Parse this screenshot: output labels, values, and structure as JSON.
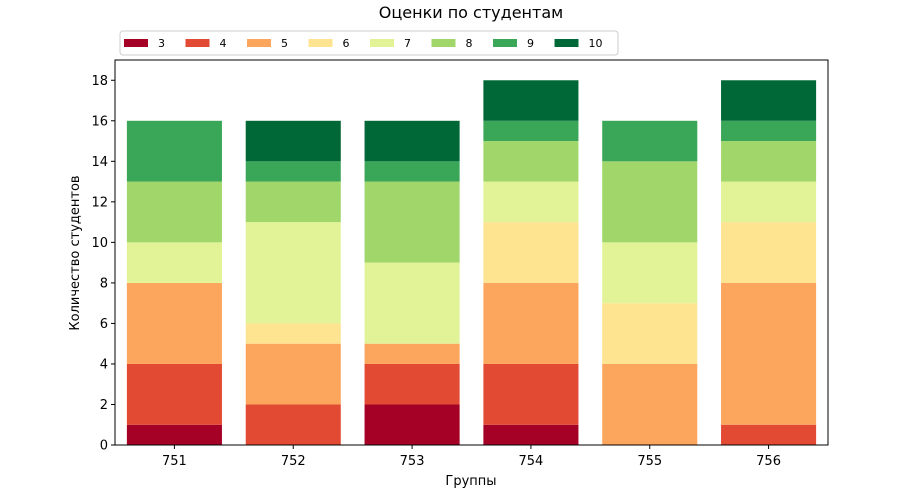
{
  "chart_data": {
    "type": "bar",
    "stacked": true,
    "title": "Оценки по студентам",
    "xlabel": "Группы",
    "ylabel": "Количество студентов",
    "categories": [
      "751",
      "752",
      "753",
      "754",
      "755",
      "756"
    ],
    "ylim": [
      0,
      19
    ],
    "yticks": [
      0,
      2,
      4,
      6,
      8,
      10,
      12,
      14,
      16,
      18
    ],
    "legend_position": "top-left",
    "legend_columns": 8,
    "grid": false,
    "series": [
      {
        "name": "3",
        "color": "#a50026",
        "values": [
          1,
          0,
          2,
          1,
          0,
          0
        ]
      },
      {
        "name": "4",
        "color": "#e34a33",
        "values": [
          3,
          2,
          2,
          3,
          0,
          1
        ]
      },
      {
        "name": "5",
        "color": "#fca55d",
        "values": [
          4,
          3,
          1,
          4,
          4,
          7
        ]
      },
      {
        "name": "6",
        "color": "#fee491",
        "values": [
          0,
          1,
          0,
          3,
          3,
          3
        ]
      },
      {
        "name": "7",
        "color": "#e2f397",
        "values": [
          2,
          5,
          4,
          2,
          3,
          2
        ]
      },
      {
        "name": "8",
        "color": "#a1d76a",
        "values": [
          3,
          2,
          4,
          2,
          4,
          2
        ]
      },
      {
        "name": "9",
        "color": "#3aa657",
        "values": [
          3,
          1,
          1,
          1,
          2,
          1
        ]
      },
      {
        "name": "10",
        "color": "#006837",
        "values": [
          0,
          2,
          2,
          2,
          0,
          2
        ]
      }
    ]
  }
}
